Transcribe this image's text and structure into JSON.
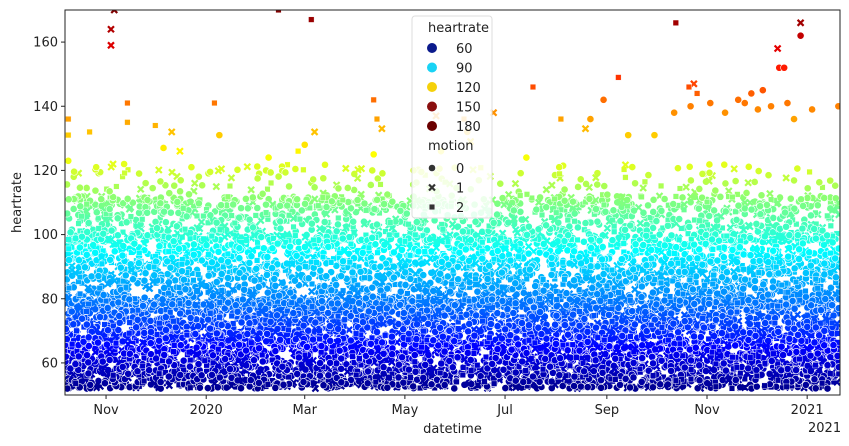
{
  "chart_data": {
    "type": "scatter",
    "title": "",
    "xlabel": "datetime",
    "ylabel": "heartrate",
    "ylim": [
      50,
      170
    ],
    "xlim": [
      "2019-10-07",
      "2021-01-21"
    ],
    "grid": false,
    "legend_position": "top-center",
    "x_ticks": [
      {
        "date": "2019-11-01",
        "label": "Nov"
      },
      {
        "date": "2020-01-01",
        "label": "2020"
      },
      {
        "date": "2020-03-01",
        "label": "Mar"
      },
      {
        "date": "2020-05-01",
        "label": "May"
      },
      {
        "date": "2020-07-01",
        "label": "Jul"
      },
      {
        "date": "2020-09-01",
        "label": "Sep"
      },
      {
        "date": "2020-11-01",
        "label": "Nov"
      },
      {
        "date": "2021-01-01",
        "label": "2021"
      }
    ],
    "x_offset_label": "2021",
    "y_ticks": [
      60,
      80,
      100,
      120,
      140,
      160
    ],
    "hue_variable": "heartrate",
    "hue_legend": [
      {
        "label": "60",
        "value": 60,
        "color": "#0b1a8c"
      },
      {
        "label": "90",
        "value": 90,
        "color": "#19d3f5"
      },
      {
        "label": "120",
        "value": 120,
        "color": "#f5d10a"
      },
      {
        "label": "150",
        "value": 150,
        "color": "#8a0f0f"
      },
      {
        "label": "180",
        "value": 180,
        "color": "#6a0000"
      }
    ],
    "style_variable": "motion",
    "style_legend": [
      {
        "label": "0",
        "marker": "circle"
      },
      {
        "label": "1",
        "marker": "x"
      },
      {
        "label": "2",
        "marker": "square"
      }
    ],
    "series": [
      {
        "name": "0",
        "marker": "circle",
        "points": [
          [
            "2019-10-09",
            123
          ],
          [
            "2019-10-26",
            121
          ],
          [
            "2019-11-12",
            122
          ],
          [
            "2019-12-06",
            127
          ],
          [
            "2019-12-23",
            121
          ],
          [
            "2020-01-09",
            131
          ],
          [
            "2020-02-08",
            124
          ],
          [
            "2020-03-01",
            128
          ],
          [
            "2020-04-12",
            125
          ],
          [
            "2020-05-23",
            126
          ],
          [
            "2020-06-08",
            132
          ],
          [
            "2020-07-14",
            124
          ],
          [
            "2020-08-03",
            121
          ],
          [
            "2020-08-22",
            136
          ],
          [
            "2020-08-30",
            142
          ],
          [
            "2020-09-14",
            131
          ],
          [
            "2020-09-30",
            131
          ],
          [
            "2020-10-12",
            138
          ],
          [
            "2020-10-22",
            140
          ],
          [
            "2020-11-03",
            141
          ],
          [
            "2020-11-12",
            138
          ],
          [
            "2020-11-20",
            142
          ],
          [
            "2020-11-28",
            144
          ],
          [
            "2020-12-05",
            145
          ],
          [
            "2020-12-10",
            140
          ],
          [
            "2020-12-15",
            152
          ],
          [
            "2020-12-18",
            152
          ],
          [
            "2020-12-24",
            136
          ],
          [
            "2020-12-28",
            162
          ],
          [
            "2021-01-04",
            139
          ],
          [
            "2021-01-20",
            140
          ],
          [
            "2020-11-24",
            141
          ],
          [
            "2020-12-02",
            139
          ],
          [
            "2020-12-20",
            141
          ]
        ]
      },
      {
        "name": "1",
        "marker": "x",
        "points": [
          [
            "2019-11-04",
            164
          ],
          [
            "2019-11-04",
            159
          ],
          [
            "2019-11-06",
            170
          ],
          [
            "2019-12-11",
            132
          ],
          [
            "2019-12-16",
            126
          ],
          [
            "2020-03-07",
            132
          ],
          [
            "2020-04-17",
            133
          ],
          [
            "2020-05-20",
            137
          ],
          [
            "2020-06-10",
            129
          ],
          [
            "2020-08-19",
            133
          ],
          [
            "2020-10-24",
            147
          ],
          [
            "2020-12-14",
            158
          ],
          [
            "2020-12-28",
            166
          ],
          [
            "2020-06-24",
            138
          ],
          [
            "2019-12-25",
            116
          ]
        ]
      },
      {
        "name": "2",
        "marker": "square",
        "points": [
          [
            "2019-10-09",
            136
          ],
          [
            "2019-10-09",
            131
          ],
          [
            "2019-11-14",
            141
          ],
          [
            "2019-11-14",
            135
          ],
          [
            "2019-12-01",
            134
          ],
          [
            "2020-01-06",
            141
          ],
          [
            "2020-02-14",
            170
          ],
          [
            "2020-02-26",
            126
          ],
          [
            "2020-03-05",
            167
          ],
          [
            "2020-04-12",
            142
          ],
          [
            "2020-04-14",
            136
          ],
          [
            "2020-07-18",
            146
          ],
          [
            "2020-08-04",
            136
          ],
          [
            "2020-09-08",
            149
          ],
          [
            "2020-10-13",
            166
          ],
          [
            "2020-10-21",
            146
          ],
          [
            "2020-10-26",
            144
          ],
          [
            "2020-06-06",
            136
          ],
          [
            "2019-10-22",
            132
          ]
        ]
      }
    ],
    "dense_band": {
      "description_values": "thousands of points per day spanning roughly 52 to 115 bpm",
      "low": 50,
      "high": 118
    }
  }
}
